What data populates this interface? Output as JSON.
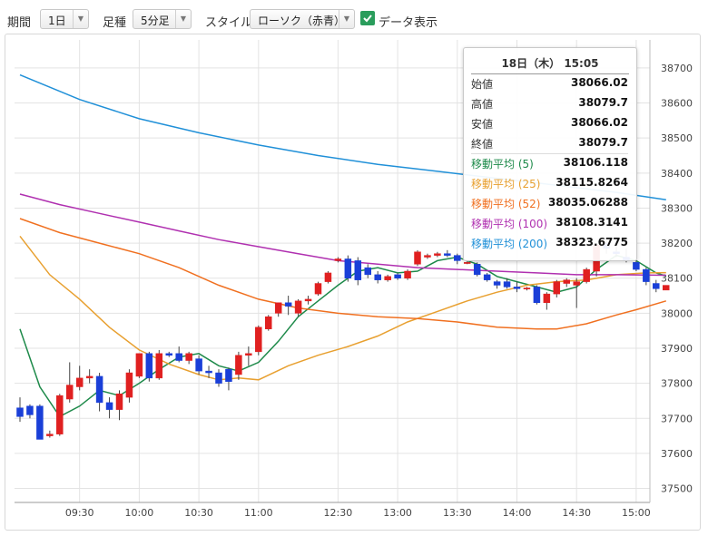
{
  "toolbar": {
    "period_label": "期間",
    "period_value": "1日",
    "ashi_label": "足種",
    "ashi_value": "5分足",
    "style_label": "スタイル",
    "style_value": "ローソク（赤青）",
    "data_display_label": "データ表示",
    "data_display_checked": true
  },
  "tooltip": {
    "title": "18日（木） 15:05",
    "rows": [
      {
        "label": "始値",
        "value": "38066.02",
        "color": "#333333"
      },
      {
        "label": "高値",
        "value": "38079.7",
        "color": "#333333"
      },
      {
        "label": "安値",
        "value": "38066.02",
        "color": "#333333"
      },
      {
        "label": "終値",
        "value": "38079.7",
        "color": "#333333"
      },
      {
        "label": "移動平均 (5)",
        "value": "38106.118",
        "color": "#1e8a4a"
      },
      {
        "label": "移動平均 (25)",
        "value": "38115.8264",
        "color": "#e8a030"
      },
      {
        "label": "移動平均 (52)",
        "value": "38035.06288",
        "color": "#f07020"
      },
      {
        "label": "移動平均 (100)",
        "value": "38108.3141",
        "color": "#b030b0"
      },
      {
        "label": "移動平均 (200)",
        "value": "38323.6775",
        "color": "#2090d8"
      }
    ]
  },
  "chart_data": {
    "type": "candlestick",
    "y_ticks": [
      37500,
      37600,
      37700,
      37800,
      37900,
      38000,
      38100,
      38200,
      38300,
      38400,
      38500,
      38600,
      38700
    ],
    "ylim": [
      37460,
      38780
    ],
    "x_ticks": [
      {
        "label": "09:30",
        "index": 6
      },
      {
        "label": "10:00",
        "index": 12
      },
      {
        "label": "10:30",
        "index": 18
      },
      {
        "label": "11:00",
        "index": 24
      },
      {
        "label": "12:30",
        "index": 32
      },
      {
        "label": "13:00",
        "index": 38
      },
      {
        "label": "13:30",
        "index": 44
      },
      {
        "label": "14:00",
        "index": 50
      },
      {
        "label": "14:30",
        "index": 56
      },
      {
        "label": "15:00",
        "index": 62
      }
    ],
    "up_color": "#e02020",
    "down_color": "#1a3fd8",
    "candles": [
      [
        37730,
        37760,
        37690,
        37705
      ],
      [
        37735,
        37740,
        37700,
        37710
      ],
      [
        37735,
        37740,
        37640,
        37640
      ],
      [
        37650,
        37665,
        37645,
        37655
      ],
      [
        37655,
        37770,
        37650,
        37765
      ],
      [
        37755,
        37860,
        37745,
        37795
      ],
      [
        37790,
        37850,
        37780,
        37815
      ],
      [
        37815,
        37840,
        37800,
        37820
      ],
      [
        37820,
        37830,
        37720,
        37745
      ],
      [
        37745,
        37760,
        37700,
        37725
      ],
      [
        37725,
        37780,
        37695,
        37770
      ],
      [
        37760,
        37840,
        37745,
        37830
      ],
      [
        37820,
        37885,
        37815,
        37885
      ],
      [
        37885,
        37890,
        37805,
        37815
      ],
      [
        37815,
        37895,
        37810,
        37885
      ],
      [
        37885,
        37890,
        37875,
        37880
      ],
      [
        37885,
        37905,
        37860,
        37865
      ],
      [
        37865,
        37890,
        37855,
        37885
      ],
      [
        37870,
        37880,
        37825,
        37835
      ],
      [
        37835,
        37850,
        37815,
        37830
      ],
      [
        37830,
        37840,
        37790,
        37800
      ],
      [
        37840,
        37845,
        37780,
        37805
      ],
      [
        37825,
        37890,
        37810,
        37880
      ],
      [
        37880,
        37905,
        37850,
        37885
      ],
      [
        37890,
        37965,
        37880,
        37960
      ],
      [
        37955,
        37995,
        37950,
        37990
      ],
      [
        38000,
        38030,
        37990,
        38030
      ],
      [
        38030,
        38050,
        37995,
        38020
      ],
      [
        38000,
        38040,
        37990,
        38035
      ],
      [
        38035,
        38050,
        38025,
        38040
      ],
      [
        38055,
        38090,
        38050,
        38085
      ],
      [
        38090,
        38120,
        38085,
        38115
      ],
      [
        38150,
        38160,
        38145,
        38155
      ],
      [
        38155,
        38165,
        38090,
        38100
      ],
      [
        38150,
        38160,
        38080,
        38095
      ],
      [
        38130,
        38140,
        38100,
        38110
      ],
      [
        38110,
        38120,
        38085,
        38095
      ],
      [
        38095,
        38110,
        38090,
        38105
      ],
      [
        38110,
        38115,
        38095,
        38100
      ],
      [
        38100,
        38125,
        38095,
        38120
      ],
      [
        38140,
        38180,
        38135,
        38175
      ],
      [
        38160,
        38170,
        38155,
        38165
      ],
      [
        38165,
        38175,
        38160,
        38170
      ],
      [
        38170,
        38180,
        38160,
        38165
      ],
      [
        38165,
        38170,
        38140,
        38150
      ],
      [
        38145,
        38150,
        38140,
        38145
      ],
      [
        38140,
        38145,
        38105,
        38110
      ],
      [
        38110,
        38115,
        38090,
        38095
      ],
      [
        38090,
        38095,
        38070,
        38080
      ],
      [
        38090,
        38100,
        38070,
        38075
      ],
      [
        38075,
        38090,
        38060,
        38070
      ],
      [
        38070,
        38075,
        38065,
        38072
      ],
      [
        38075,
        38080,
        38025,
        38030
      ],
      [
        38030,
        38060,
        38010,
        38055
      ],
      [
        38055,
        38095,
        38045,
        38090
      ],
      [
        38085,
        38100,
        38075,
        38095
      ],
      [
        38080,
        38100,
        38015,
        38090
      ],
      [
        38090,
        38130,
        38085,
        38125
      ],
      [
        38120,
        38200,
        38105,
        38195
      ],
      [
        38200,
        38215,
        38170,
        38185
      ],
      [
        38175,
        38195,
        38160,
        38170
      ],
      [
        38160,
        38185,
        38145,
        38150
      ],
      [
        38145,
        38155,
        38120,
        38125
      ],
      [
        38125,
        38130,
        38080,
        38090
      ],
      [
        38085,
        38095,
        38060,
        38070
      ],
      [
        38066.02,
        38079.7,
        38066.02,
        38079.7
      ]
    ],
    "series": [
      {
        "name": "移動平均 (5)",
        "color": "#1e8a4a",
        "points": [
          [
            0,
            37955
          ],
          [
            2,
            37790
          ],
          [
            4,
            37705
          ],
          [
            6,
            37735
          ],
          [
            8,
            37780
          ],
          [
            10,
            37765
          ],
          [
            12,
            37800
          ],
          [
            14,
            37840
          ],
          [
            16,
            37875
          ],
          [
            18,
            37885
          ],
          [
            20,
            37850
          ],
          [
            22,
            37835
          ],
          [
            24,
            37860
          ],
          [
            26,
            37920
          ],
          [
            28,
            37990
          ],
          [
            30,
            38035
          ],
          [
            32,
            38080
          ],
          [
            34,
            38120
          ],
          [
            36,
            38130
          ],
          [
            38,
            38115
          ],
          [
            40,
            38120
          ],
          [
            42,
            38150
          ],
          [
            44,
            38160
          ],
          [
            46,
            38140
          ],
          [
            48,
            38105
          ],
          [
            50,
            38090
          ],
          [
            52,
            38075
          ],
          [
            54,
            38060
          ],
          [
            56,
            38075
          ],
          [
            58,
            38125
          ],
          [
            60,
            38165
          ],
          [
            62,
            38150
          ],
          [
            64,
            38115
          ],
          [
            65,
            38106.118
          ]
        ]
      },
      {
        "name": "移動平均 (25)",
        "color": "#e8a030",
        "points": [
          [
            0,
            38220
          ],
          [
            3,
            38110
          ],
          [
            6,
            38040
          ],
          [
            9,
            37960
          ],
          [
            12,
            37895
          ],
          [
            15,
            37855
          ],
          [
            18,
            37825
          ],
          [
            20,
            37810
          ],
          [
            22,
            37815
          ],
          [
            24,
            37810
          ],
          [
            27,
            37850
          ],
          [
            30,
            37880
          ],
          [
            33,
            37905
          ],
          [
            36,
            37935
          ],
          [
            39,
            37975
          ],
          [
            42,
            38005
          ],
          [
            45,
            38035
          ],
          [
            48,
            38060
          ],
          [
            51,
            38080
          ],
          [
            54,
            38090
          ],
          [
            57,
            38095
          ],
          [
            60,
            38110
          ],
          [
            63,
            38115
          ],
          [
            65,
            38115.8264
          ]
        ]
      },
      {
        "name": "移動平均 (52)",
        "color": "#f07020",
        "points": [
          [
            0,
            38270
          ],
          [
            4,
            38230
          ],
          [
            8,
            38200
          ],
          [
            12,
            38170
          ],
          [
            16,
            38130
          ],
          [
            20,
            38080
          ],
          [
            24,
            38040
          ],
          [
            28,
            38015
          ],
          [
            32,
            38000
          ],
          [
            36,
            37990
          ],
          [
            40,
            37985
          ],
          [
            44,
            37975
          ],
          [
            48,
            37960
          ],
          [
            52,
            37955
          ],
          [
            54,
            37955
          ],
          [
            57,
            37970
          ],
          [
            60,
            37995
          ],
          [
            62,
            38010
          ],
          [
            65,
            38035.06288
          ]
        ]
      },
      {
        "name": "移動平均 (100)",
        "color": "#b030b0",
        "points": [
          [
            0,
            38340
          ],
          [
            4,
            38310
          ],
          [
            8,
            38285
          ],
          [
            12,
            38260
          ],
          [
            16,
            38235
          ],
          [
            20,
            38210
          ],
          [
            24,
            38190
          ],
          [
            28,
            38170
          ],
          [
            32,
            38150
          ],
          [
            36,
            38140
          ],
          [
            40,
            38130
          ],
          [
            44,
            38125
          ],
          [
            48,
            38120
          ],
          [
            52,
            38115
          ],
          [
            56,
            38110
          ],
          [
            60,
            38110
          ],
          [
            65,
            38108.3141
          ]
        ]
      },
      {
        "name": "移動平均 (200)",
        "color": "#2090d8",
        "points": [
          [
            0,
            38680
          ],
          [
            6,
            38610
          ],
          [
            12,
            38555
          ],
          [
            18,
            38515
          ],
          [
            24,
            38480
          ],
          [
            30,
            38450
          ],
          [
            36,
            38425
          ],
          [
            42,
            38405
          ],
          [
            48,
            38385
          ],
          [
            54,
            38365
          ],
          [
            60,
            38345
          ],
          [
            65,
            38323.6775
          ]
        ]
      }
    ]
  }
}
